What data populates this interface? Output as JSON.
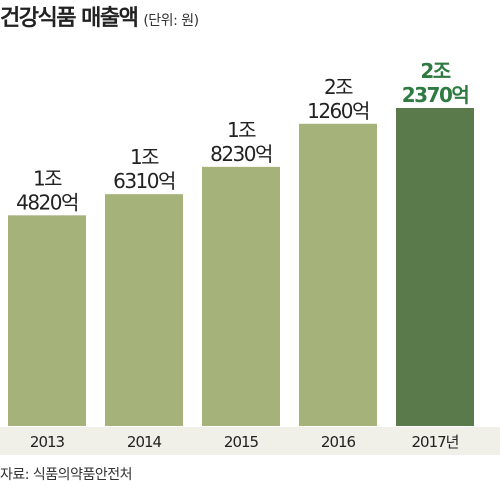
{
  "chart_data": {
    "type": "bar",
    "title": "건강식품 매출액",
    "unit_note": "(단위: 원)",
    "categories": [
      "2013",
      "2014",
      "2015",
      "2016",
      "2017년"
    ],
    "values": [
      14820,
      16310,
      18230,
      21260,
      22370
    ],
    "value_unit": "억 원",
    "data_labels": [
      [
        "1조",
        "4820억"
      ],
      [
        "1조",
        "6310억"
      ],
      [
        "1조",
        "8230억"
      ],
      [
        "2조",
        "1260억"
      ],
      [
        "2조",
        "2370억"
      ]
    ],
    "highlight_index": 4,
    "ylim": [
      0,
      22370
    ],
    "grid": false,
    "legend": "none",
    "colors": {
      "bar": "#a5b27a",
      "highlight_bar": "#5a7a4c",
      "highlight_label": "#2e7a42",
      "label": "#222222",
      "axis_band": "#f0efe8"
    },
    "source": "자료: 식품의약품안전처"
  }
}
